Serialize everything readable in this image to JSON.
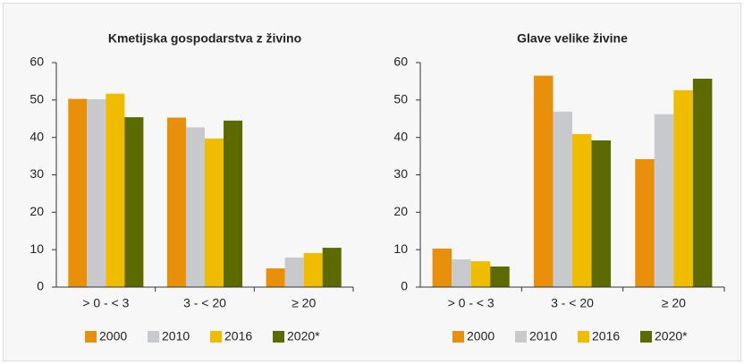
{
  "chart_data": [
    {
      "type": "bar",
      "title": "Kmetijska gospodarstva z živino",
      "categories": [
        "> 0 - < 3",
        "3 - < 20",
        "≥ 20"
      ],
      "series": [
        {
          "name": "2000",
          "color": "#e8900c",
          "values": [
            50.3,
            45.3,
            5.0
          ]
        },
        {
          "name": "2010",
          "color": "#c8c9cd",
          "values": [
            50.2,
            42.7,
            7.9
          ]
        },
        {
          "name": "2016",
          "color": "#f0bc00",
          "values": [
            51.7,
            39.7,
            9.1
          ]
        },
        {
          "name": "2020*",
          "color": "#5d6a00",
          "values": [
            45.4,
            44.5,
            10.5
          ]
        }
      ],
      "ylim": [
        0,
        60
      ],
      "yticks": [
        0,
        10,
        20,
        30,
        40,
        50,
        60
      ],
      "grid": false,
      "legend": "bottom"
    },
    {
      "type": "bar",
      "title": "Glave velike živine",
      "categories": [
        "> 0 - < 3",
        "3 - < 20",
        "≥ 20"
      ],
      "series": [
        {
          "name": "2000",
          "color": "#e8900c",
          "values": [
            10.3,
            56.5,
            34.2
          ]
        },
        {
          "name": "2010",
          "color": "#c8c9cd",
          "values": [
            7.4,
            46.9,
            46.2
          ]
        },
        {
          "name": "2016",
          "color": "#f0bc00",
          "values": [
            6.9,
            40.9,
            52.6
          ]
        },
        {
          "name": "2020*",
          "color": "#5d6a00",
          "values": [
            5.5,
            39.2,
            55.7
          ]
        }
      ],
      "ylim": [
        0,
        60
      ],
      "yticks": [
        0,
        10,
        20,
        30,
        40,
        50,
        60
      ],
      "grid": false,
      "legend": "bottom"
    }
  ]
}
